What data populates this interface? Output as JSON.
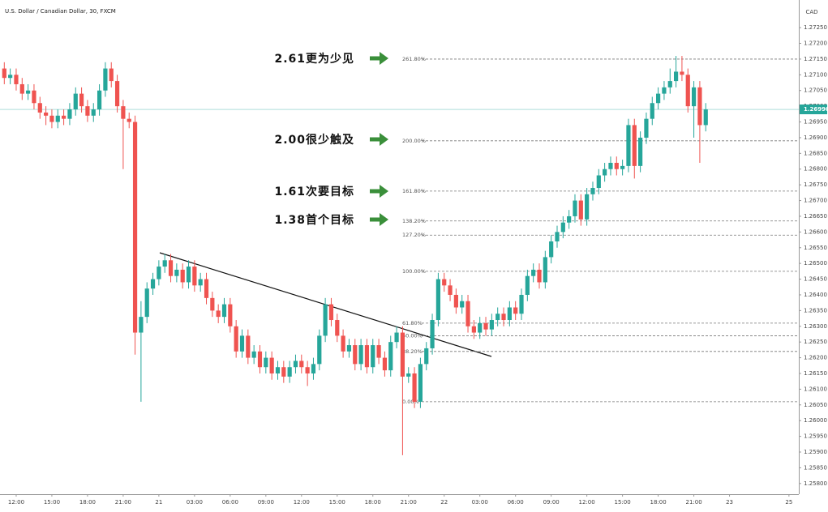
{
  "chart_data": {
    "type": "candlestick",
    "title": "U.S. Dollar / Canadian Dollar, 30, FXCM",
    "currency": "CAD",
    "categories": [
      null,
      null,
      "12:00",
      null,
      null,
      null,
      null,
      null,
      "15:00",
      null,
      null,
      null,
      null,
      null,
      "18:00",
      null,
      null,
      null,
      null,
      null,
      "21:00",
      null,
      null,
      null,
      null,
      null,
      "21",
      null,
      null,
      null,
      null,
      null,
      "03:00",
      null,
      null,
      null,
      null,
      null,
      "06:00",
      null,
      null,
      null,
      null,
      null,
      "09:00",
      null,
      null,
      null,
      null,
      null,
      "12:00",
      null,
      null,
      null,
      null,
      null,
      "15:00",
      null,
      null,
      null,
      null,
      null,
      "18:00",
      null,
      null,
      null,
      null,
      null,
      "21:00",
      null,
      null,
      null,
      null,
      null,
      "22",
      null,
      null,
      null,
      null,
      null,
      "03:00",
      null,
      null,
      null,
      null,
      null,
      "06:00",
      null,
      null,
      null,
      null,
      null,
      "09:00",
      null,
      null,
      null,
      null,
      null,
      "12:00",
      null,
      null,
      null,
      null,
      null,
      "15:00",
      null,
      null,
      null,
      null,
      null,
      "18:00",
      null,
      null,
      null,
      null,
      null,
      "21:00",
      null,
      null,
      null,
      null,
      null,
      "23",
      null,
      null,
      null,
      null,
      null,
      null,
      null,
      null,
      null,
      "25"
    ],
    "open": [
      1.2712,
      1.2709,
      1.271,
      1.2707,
      1.2704,
      1.2705,
      1.2701,
      1.2698,
      1.2697,
      1.2695,
      1.2697,
      1.2696,
      1.2699,
      1.2704,
      1.27,
      1.2697,
      1.2699,
      1.2705,
      1.2712,
      1.2708,
      1.27,
      1.2696,
      1.2695,
      1.2628,
      1.2633,
      1.2642,
      1.2645,
      1.2649,
      1.2651,
      1.2646,
      1.2648,
      1.2644,
      1.2649,
      1.2643,
      1.2645,
      1.2639,
      1.2635,
      1.2633,
      1.2637,
      1.263,
      1.2622,
      1.2627,
      1.262,
      1.2622,
      1.2617,
      1.262,
      1.2615,
      1.2617,
      1.2614,
      1.2617,
      1.2619,
      1.2617,
      1.2615,
      1.2618,
      1.2627,
      1.2637,
      1.2632,
      1.2627,
      1.2622,
      1.2624,
      1.2618,
      1.2624,
      1.2617,
      1.2624,
      1.262,
      1.2616,
      1.2625,
      1.2628,
      1.2614,
      1.2615,
      1.2606,
      1.2618,
      1.2623,
      1.2632,
      1.2645,
      1.2643,
      1.264,
      1.2636,
      1.2638,
      1.263,
      1.2628,
      1.2631,
      1.2629,
      1.2632,
      1.2634,
      1.2632,
      1.2636,
      1.2634,
      1.264,
      1.2646,
      1.2648,
      1.2644,
      1.2652,
      1.2657,
      1.266,
      1.2663,
      1.2665,
      1.267,
      1.2664,
      1.2672,
      1.2674,
      1.2678,
      1.268,
      1.2682,
      1.268,
      1.2681,
      1.2694,
      1.2681,
      1.269,
      1.2696,
      1.2701,
      1.2704,
      1.2706,
      1.2708,
      1.2711,
      1.271,
      1.27,
      1.2706,
      1.2694,
      null,
      null,
      null,
      null,
      null,
      null,
      null,
      null,
      null,
      null,
      null,
      null,
      null,
      null
    ],
    "high": [
      1.2714,
      1.2712,
      1.2712,
      1.2709,
      1.2707,
      1.2707,
      1.2703,
      1.27,
      1.2699,
      1.2699,
      1.2699,
      1.2701,
      1.2706,
      1.2706,
      1.2702,
      1.2701,
      1.2707,
      1.2714,
      1.2714,
      1.271,
      1.2702,
      1.2698,
      1.2697,
      1.2638,
      1.2644,
      1.2647,
      1.2651,
      1.2653,
      1.2653,
      1.265,
      1.265,
      1.2651,
      1.2651,
      1.2647,
      1.2647,
      1.2641,
      1.2637,
      1.2639,
      1.2639,
      1.2632,
      1.2629,
      1.2629,
      1.2624,
      1.2624,
      1.2622,
      1.2622,
      1.2619,
      1.2619,
      1.2619,
      1.2621,
      1.2621,
      1.2619,
      1.262,
      1.2629,
      1.2639,
      1.2639,
      1.2634,
      1.2629,
      1.2626,
      1.2626,
      1.2626,
      1.2626,
      1.2626,
      1.2626,
      1.2622,
      1.2627,
      1.263,
      1.263,
      1.2617,
      1.2617,
      1.262,
      1.2625,
      1.2634,
      1.2647,
      1.2647,
      1.2645,
      1.2642,
      1.264,
      1.264,
      1.2632,
      1.2633,
      1.2633,
      1.2634,
      1.2636,
      1.2636,
      1.2638,
      1.2638,
      1.2642,
      1.2648,
      1.265,
      1.265,
      1.2654,
      1.2659,
      1.2662,
      1.2665,
      1.2667,
      1.2672,
      1.2672,
      1.2674,
      1.2676,
      1.268,
      1.2682,
      1.2684,
      1.2684,
      1.2683,
      1.2696,
      1.2696,
      1.2692,
      1.2698,
      1.2703,
      1.2706,
      1.2708,
      1.2712,
      1.2716,
      1.2716,
      1.2712,
      1.2708,
      1.2708,
      1.2701,
      null,
      null,
      null,
      null,
      null,
      null,
      null,
      null,
      null,
      null,
      null,
      null,
      null,
      null
    ],
    "low": [
      1.2707,
      1.2707,
      1.2705,
      1.2702,
      1.2702,
      1.2699,
      1.2696,
      1.2694,
      1.2693,
      1.2693,
      1.2694,
      1.2694,
      1.2697,
      1.2698,
      1.2695,
      1.2695,
      1.2697,
      1.2703,
      1.2706,
      1.2698,
      1.268,
      1.2693,
      1.2621,
      1.2606,
      1.2631,
      1.264,
      1.2643,
      1.2647,
      1.2644,
      1.2644,
      1.2642,
      1.2642,
      1.2641,
      1.2641,
      1.2637,
      1.2633,
      1.2631,
      1.2631,
      1.2628,
      1.262,
      1.262,
      1.2618,
      1.2618,
      1.2615,
      1.2615,
      1.2613,
      1.2613,
      1.2612,
      1.2612,
      1.2615,
      1.2615,
      1.2611,
      1.2613,
      1.2616,
      1.2625,
      1.263,
      1.2625,
      1.262,
      1.262,
      1.2616,
      1.2616,
      1.2615,
      1.2615,
      1.2618,
      1.2614,
      1.2614,
      1.2623,
      1.2589,
      1.2612,
      1.2604,
      1.2604,
      1.2616,
      1.2621,
      1.263,
      1.2641,
      1.2638,
      1.2634,
      1.2634,
      1.2628,
      1.2626,
      1.2626,
      1.2627,
      1.2627,
      1.263,
      1.263,
      1.263,
      1.2632,
      1.2632,
      1.2638,
      1.2644,
      1.2642,
      1.2642,
      1.265,
      1.2655,
      1.2658,
      1.2661,
      1.2663,
      1.2662,
      1.2662,
      1.267,
      1.2672,
      1.2676,
      1.2678,
      1.2678,
      1.2678,
      1.2679,
      1.2677,
      1.2679,
      1.2688,
      1.2694,
      1.2699,
      1.2702,
      1.2704,
      1.2706,
      1.2708,
      1.2698,
      1.269,
      1.2682,
      1.2692,
      null,
      null,
      null,
      null,
      null,
      null,
      null,
      null,
      null,
      null,
      null,
      null,
      null,
      null
    ],
    "close": [
      1.2709,
      1.271,
      1.2707,
      1.2704,
      1.2705,
      1.2701,
      1.2698,
      1.2697,
      1.2695,
      1.2697,
      1.2696,
      1.2699,
      1.2704,
      1.27,
      1.2697,
      1.2699,
      1.2705,
      1.2712,
      1.2708,
      1.27,
      1.2696,
      1.2695,
      1.2628,
      1.2633,
      1.2642,
      1.2645,
      1.2649,
      1.2651,
      1.2646,
      1.2648,
      1.2644,
      1.2649,
      1.2643,
      1.2645,
      1.2639,
      1.2635,
      1.2633,
      1.2637,
      1.263,
      1.2622,
      1.2627,
      1.262,
      1.2622,
      1.2617,
      1.262,
      1.2615,
      1.2617,
      1.2614,
      1.2617,
      1.2619,
      1.2617,
      1.2615,
      1.2618,
      1.2627,
      1.2637,
      1.2632,
      1.2627,
      1.2622,
      1.2624,
      1.2618,
      1.2624,
      1.2617,
      1.2624,
      1.262,
      1.2616,
      1.2625,
      1.2628,
      1.2614,
      1.2615,
      1.2606,
      1.2618,
      1.2623,
      1.2632,
      1.2645,
      1.2643,
      1.264,
      1.2636,
      1.2638,
      1.263,
      1.2628,
      1.2631,
      1.2629,
      1.2632,
      1.2634,
      1.2632,
      1.2636,
      1.2634,
      1.264,
      1.2646,
      1.2648,
      1.2644,
      1.2652,
      1.2657,
      1.266,
      1.2663,
      1.2665,
      1.267,
      1.2664,
      1.2672,
      1.2674,
      1.2678,
      1.268,
      1.2682,
      1.268,
      1.2681,
      1.2694,
      1.2681,
      1.269,
      1.2696,
      1.2701,
      1.2704,
      1.2706,
      1.2708,
      1.2711,
      1.271,
      1.27,
      1.2706,
      1.2694,
      1.2699,
      null,
      null,
      null,
      null,
      null,
      null,
      null,
      null,
      null,
      null,
      null,
      null,
      null,
      null
    ],
    "up_color": "#26a69a",
    "down_color": "#ef5350",
    "ylim": [
      1.25766,
      1.27307
    ],
    "yticks": [
      {
        "value": 1.258,
        "label": "1.25800"
      },
      {
        "value": 1.2585,
        "label": "1.25850"
      },
      {
        "value": 1.259,
        "label": "1.25900"
      },
      {
        "value": 1.2595,
        "label": "1.25950"
      },
      {
        "value": 1.26,
        "label": "1.26000"
      },
      {
        "value": 1.2605,
        "label": "1.26050"
      },
      {
        "value": 1.261,
        "label": "1.26100"
      },
      {
        "value": 1.2615,
        "label": "1.26150"
      },
      {
        "value": 1.262,
        "label": "1.26200"
      },
      {
        "value": 1.2625,
        "label": "1.26250"
      },
      {
        "value": 1.263,
        "label": "1.26300"
      },
      {
        "value": 1.2635,
        "label": "1.26350"
      },
      {
        "value": 1.264,
        "label": "1.26400"
      },
      {
        "value": 1.2645,
        "label": "1.26450"
      },
      {
        "value": 1.265,
        "label": "1.26500"
      },
      {
        "value": 1.2655,
        "label": "1.26550"
      },
      {
        "value": 1.266,
        "label": "1.26600"
      },
      {
        "value": 1.2665,
        "label": "1.26650"
      },
      {
        "value": 1.267,
        "label": "1.26700"
      },
      {
        "value": 1.2675,
        "label": "1.26750"
      },
      {
        "value": 1.268,
        "label": "1.26800"
      },
      {
        "value": 1.2685,
        "label": "1.26850"
      },
      {
        "value": 1.269,
        "label": "1.26900"
      },
      {
        "value": 1.2695,
        "label": "1.26950"
      },
      {
        "value": 1.27,
        "label": "1.27000"
      },
      {
        "value": 1.2705,
        "label": "1.27050"
      },
      {
        "value": 1.271,
        "label": "1.27100"
      },
      {
        "value": 1.2715,
        "label": "1.27150"
      },
      {
        "value": 1.272,
        "label": "1.27200"
      },
      {
        "value": 1.2725,
        "label": "1.27250"
      }
    ],
    "last_price": {
      "value": 1.2699,
      "label": "1.26990"
    },
    "fib_levels": [
      {
        "label": "261.80%",
        "value": 1.2715
      },
      {
        "label": "200.00%",
        "value": 1.2689
      },
      {
        "label": "161.80%",
        "value": 1.2673
      },
      {
        "label": "138.20%",
        "value": 1.26635
      },
      {
        "label": "127.20%",
        "value": 1.2659
      },
      {
        "label": "100.00%",
        "value": 1.26475
      },
      {
        "label": "61.80%",
        "value": 1.2631
      },
      {
        "label": "50.00%",
        "value": 1.2627
      },
      {
        "label": "38.20%",
        "value": 1.2622
      },
      {
        "label": "0.00%",
        "value": 1.2606
      }
    ],
    "annotations": [
      "2.61更为少见",
      "2.00很少触及",
      "1.61次要目标",
      "1.38首个目标"
    ]
  }
}
